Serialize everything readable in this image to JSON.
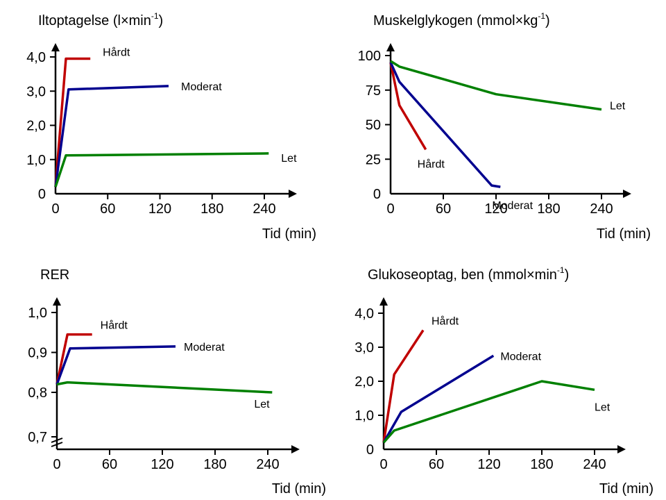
{
  "colors": {
    "hard": "#c00000",
    "moderate": "#00008f",
    "light": "#008000",
    "axis": "#000000"
  },
  "chart_data": [
    {
      "type": "line",
      "title": "Iltoptagelse (l×min",
      "title_sup": "-1",
      "title_tail": ")",
      "xlabel": "Tid (min)",
      "ylabel": "",
      "xlim": [
        0,
        270
      ],
      "ylim": [
        0,
        4.4
      ],
      "xticks": [
        0,
        60,
        120,
        180,
        240
      ],
      "xtick_labels": [
        "0",
        "60",
        "120",
        "180",
        "240"
      ],
      "yticks": [
        0,
        1,
        2,
        3,
        4
      ],
      "ytick_labels": [
        "0",
        "1,0",
        "2,0",
        "3,0",
        "4,0"
      ],
      "series": [
        {
          "name": "Hårdt",
          "color": "hard",
          "x": [
            0,
            12,
            40
          ],
          "y": [
            0.2,
            3.95,
            3.95
          ]
        },
        {
          "name": "Moderat",
          "color": "moderate",
          "x": [
            0,
            15,
            130
          ],
          "y": [
            0.2,
            3.05,
            3.15
          ]
        },
        {
          "name": "Let",
          "color": "light",
          "x": [
            0,
            12,
            245
          ],
          "y": [
            0.2,
            1.12,
            1.18
          ]
        }
      ]
    },
    {
      "type": "line",
      "title": "Muskelglykogen (mmol×kg",
      "title_sup": "-1",
      "title_tail": ")",
      "xlabel": "Tid (min)",
      "ylabel": "",
      "xlim": [
        0,
        270
      ],
      "ylim": [
        0,
        110
      ],
      "xticks": [
        0,
        60,
        120,
        180,
        240
      ],
      "xtick_labels": [
        "0",
        "60",
        "120",
        "180",
        "240"
      ],
      "yticks": [
        0,
        25,
        50,
        75,
        100
      ],
      "ytick_labels": [
        "0",
        "25",
        "50",
        "75",
        "100"
      ],
      "series": [
        {
          "name": "Hårdt",
          "color": "hard",
          "x": [
            0,
            10,
            40
          ],
          "y": [
            95,
            64,
            32
          ]
        },
        {
          "name": "Moderat",
          "color": "moderate",
          "x": [
            0,
            10,
            115,
            125
          ],
          "y": [
            95,
            81,
            6,
            5
          ]
        },
        {
          "name": "Let",
          "color": "light",
          "x": [
            0,
            10,
            120,
            240
          ],
          "y": [
            96,
            92,
            72,
            61
          ]
        }
      ]
    },
    {
      "type": "line",
      "title": "RER",
      "title_sup": "",
      "title_tail": "",
      "xlabel": "Tid (min)",
      "ylabel": "",
      "xlim": [
        0,
        270
      ],
      "ylim": [
        0.7,
        1.03
      ],
      "xticks": [
        0,
        60,
        120,
        180,
        240
      ],
      "xtick_labels": [
        "0",
        "60",
        "120",
        "180",
        "240"
      ],
      "yticks": [
        0.7,
        0.8,
        0.9,
        1.0
      ],
      "ytick_labels": [
        "0,7",
        "0,8",
        "0,9",
        "1,0"
      ],
      "axis_break": true,
      "series": [
        {
          "name": "Hårdt",
          "color": "hard",
          "x": [
            0,
            12,
            40
          ],
          "y": [
            0.82,
            0.945,
            0.945
          ]
        },
        {
          "name": "Moderat",
          "color": "moderate",
          "x": [
            0,
            15,
            135
          ],
          "y": [
            0.82,
            0.91,
            0.915
          ]
        },
        {
          "name": "Let",
          "color": "light",
          "x": [
            0,
            12,
            245
          ],
          "y": [
            0.82,
            0.825,
            0.8
          ]
        }
      ]
    },
    {
      "type": "line",
      "title": "Glukoseoptag, ben (mmol×min",
      "title_sup": "-1",
      "title_tail": ")",
      "xlabel": "Tid (min)",
      "ylabel": "",
      "xlim": [
        0,
        270
      ],
      "ylim": [
        0,
        4.4
      ],
      "xticks": [
        0,
        60,
        120,
        180,
        240
      ],
      "xtick_labels": [
        "0",
        "60",
        "120",
        "180",
        "240"
      ],
      "yticks": [
        0,
        1,
        2,
        3,
        4
      ],
      "ytick_labels": [
        "0",
        "1,0",
        "2,0",
        "3,0",
        "4,0"
      ],
      "series": [
        {
          "name": "Hårdt",
          "color": "hard",
          "x": [
            0,
            12,
            45
          ],
          "y": [
            0.2,
            2.2,
            3.5
          ]
        },
        {
          "name": "Moderat",
          "color": "moderate",
          "x": [
            0,
            20,
            125
          ],
          "y": [
            0.2,
            1.1,
            2.75
          ]
        },
        {
          "name": "Let",
          "color": "light",
          "x": [
            0,
            12,
            180,
            240
          ],
          "y": [
            0.2,
            0.55,
            2.0,
            1.75
          ]
        }
      ]
    }
  ]
}
